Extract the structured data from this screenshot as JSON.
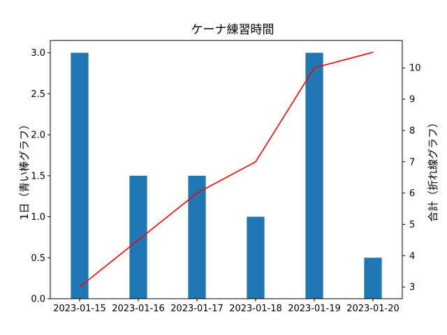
{
  "chart_data": {
    "type": "bar",
    "title": "ケーナ練習時間",
    "xlabel": "",
    "categories": [
      "2023-01-15",
      "2023-01-16",
      "2023-01-17",
      "2023-01-18",
      "2023-01-19",
      "2023-01-20"
    ],
    "series": [
      {
        "name": "1日（青い棒グラフ）",
        "type": "bar",
        "axis": "left",
        "color": "#1f77b4",
        "values": [
          3.0,
          1.5,
          1.5,
          1.0,
          3.0,
          0.5
        ]
      },
      {
        "name": "合計（折れ線グラフ）",
        "type": "line",
        "axis": "right",
        "color": "#ff0000",
        "values": [
          3.0,
          4.5,
          6.0,
          7.0,
          10.0,
          10.5
        ]
      }
    ],
    "ylabel_left": "1日（青い棒グラフ）",
    "ylabel_right": "合計（折れ線グラフ）",
    "ylim_left": [
      0,
      3.15
    ],
    "ylim_right": [
      2.625,
      10.875
    ],
    "yticks_left": [
      "0.0",
      "0.5",
      "1.0",
      "1.5",
      "2.0",
      "2.5",
      "3.0"
    ],
    "yticks_right": [
      "3",
      "4",
      "5",
      "6",
      "7",
      "8",
      "9",
      "10"
    ],
    "grid": false
  }
}
